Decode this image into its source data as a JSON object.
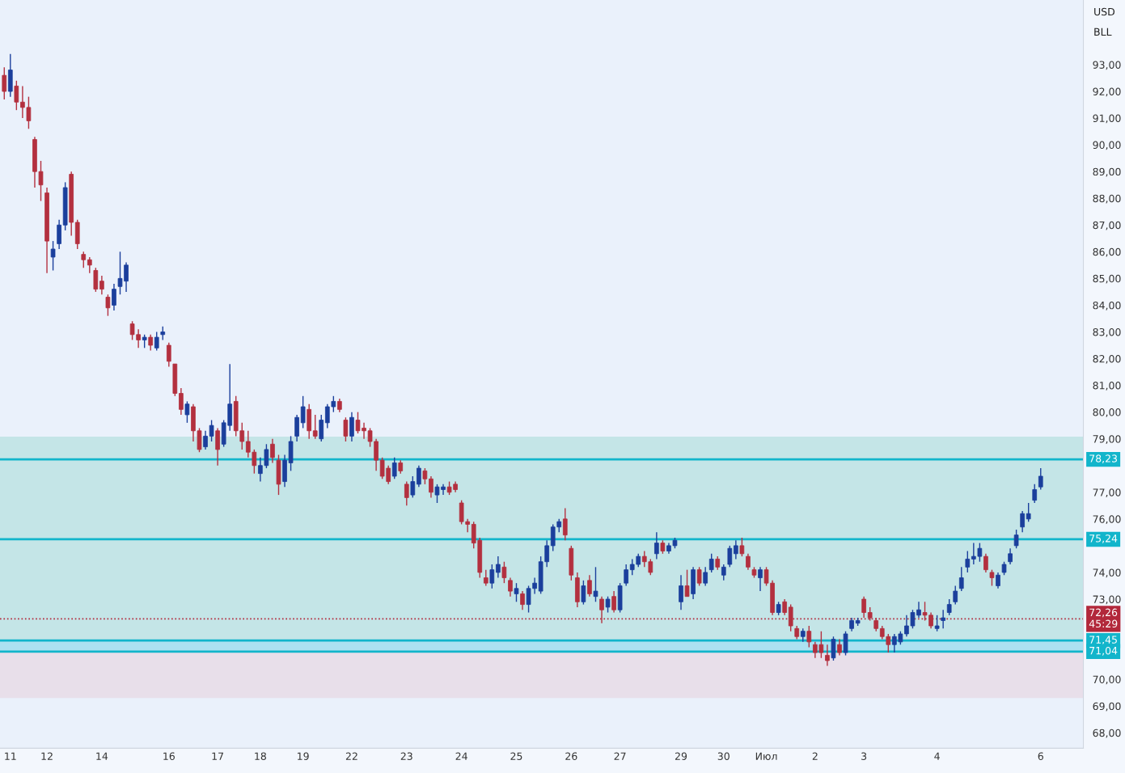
{
  "chart_data": {
    "type": "candlestick",
    "categories": [
      null,
      "11",
      null,
      null,
      null,
      null,
      null,
      "12",
      null,
      null,
      null,
      null,
      null,
      null,
      null,
      null,
      "14",
      null,
      null,
      null,
      null,
      null,
      null,
      null,
      null,
      null,
      null,
      "16",
      null,
      null,
      null,
      null,
      null,
      null,
      null,
      "17",
      null,
      null,
      null,
      null,
      null,
      null,
      "18",
      null,
      null,
      null,
      null,
      null,
      null,
      "19",
      null,
      null,
      null,
      null,
      null,
      null,
      null,
      "22",
      null,
      null,
      null,
      null,
      null,
      null,
      null,
      null,
      "23",
      null,
      null,
      null,
      null,
      null,
      null,
      null,
      null,
      "24",
      null,
      null,
      null,
      null,
      null,
      null,
      null,
      null,
      "25",
      null,
      null,
      null,
      null,
      null,
      null,
      null,
      null,
      "26",
      null,
      null,
      null,
      null,
      null,
      null,
      null,
      "27",
      null,
      null,
      null,
      null,
      null,
      null,
      null,
      null,
      null,
      "29",
      null,
      null,
      null,
      null,
      null,
      null,
      "30",
      null,
      null,
      null,
      null,
      null,
      null,
      "Июл",
      null,
      null,
      null,
      null,
      null,
      null,
      null,
      "2",
      null,
      null,
      null,
      null,
      null,
      null,
      null,
      "3",
      null,
      null,
      null,
      null,
      null,
      null,
      null,
      null,
      null,
      null,
      null,
      "4",
      null,
      null,
      null,
      null,
      null,
      null,
      null,
      null,
      null,
      null,
      null,
      null,
      null,
      null,
      null,
      null,
      "6"
    ],
    "ohlc": [
      [
        92.6,
        92.9,
        91.7,
        92.0
      ],
      [
        92.0,
        93.4,
        91.8,
        92.8
      ],
      [
        92.2,
        92.4,
        91.3,
        91.6
      ],
      [
        91.6,
        92.2,
        91.0,
        91.4
      ],
      [
        91.4,
        91.8,
        90.6,
        90.9
      ],
      [
        90.2,
        90.3,
        88.4,
        89.0
      ],
      [
        89.0,
        89.4,
        87.9,
        88.5
      ],
      [
        88.2,
        88.4,
        85.2,
        86.4
      ],
      [
        85.8,
        86.4,
        85.3,
        86.1
      ],
      [
        86.3,
        87.2,
        86.1,
        87.0
      ],
      [
        87.0,
        88.6,
        86.8,
        88.4
      ],
      [
        88.9,
        89.0,
        86.6,
        87.1
      ],
      [
        87.1,
        87.2,
        86.1,
        86.3
      ],
      [
        85.9,
        86.0,
        85.4,
        85.7
      ],
      [
        85.7,
        85.8,
        85.2,
        85.5
      ],
      [
        85.3,
        85.4,
        84.5,
        84.6
      ],
      [
        84.9,
        85.1,
        84.4,
        84.6
      ],
      [
        84.3,
        84.4,
        83.6,
        83.9
      ],
      [
        84.0,
        84.8,
        83.8,
        84.6
      ],
      [
        84.7,
        86.0,
        84.4,
        85.0
      ],
      [
        84.9,
        85.6,
        84.5,
        85.5
      ],
      [
        83.3,
        83.4,
        82.7,
        82.9
      ],
      [
        82.9,
        83.1,
        82.4,
        82.7
      ],
      [
        82.7,
        82.9,
        82.4,
        82.8
      ],
      [
        82.8,
        82.9,
        82.3,
        82.5
      ],
      [
        82.4,
        83.0,
        82.3,
        82.8
      ],
      [
        82.9,
        83.2,
        82.7,
        83.0
      ],
      [
        82.5,
        82.6,
        81.7,
        81.9
      ],
      [
        81.8,
        81.8,
        80.6,
        80.7
      ],
      [
        80.7,
        80.9,
        79.9,
        80.1
      ],
      [
        79.9,
        80.4,
        79.6,
        80.3
      ],
      [
        80.2,
        80.3,
        78.9,
        79.3
      ],
      [
        79.3,
        79.4,
        78.5,
        78.6
      ],
      [
        78.7,
        79.3,
        78.6,
        79.1
      ],
      [
        79.1,
        79.7,
        78.9,
        79.5
      ],
      [
        79.3,
        79.4,
        78.0,
        78.6
      ],
      [
        78.8,
        79.7,
        78.7,
        79.6
      ],
      [
        79.5,
        81.8,
        79.3,
        80.3
      ],
      [
        80.4,
        80.6,
        79.1,
        79.3
      ],
      [
        79.3,
        79.6,
        78.6,
        78.9
      ],
      [
        78.9,
        79.3,
        78.3,
        78.5
      ],
      [
        78.5,
        78.6,
        77.7,
        78.0
      ],
      [
        77.7,
        78.3,
        77.4,
        78.0
      ],
      [
        78.0,
        78.8,
        77.9,
        78.6
      ],
      [
        78.8,
        79.0,
        78.1,
        78.3
      ],
      [
        78.2,
        78.4,
        76.9,
        77.3
      ],
      [
        77.4,
        78.4,
        77.2,
        78.2
      ],
      [
        78.1,
        79.1,
        77.8,
        78.9
      ],
      [
        79.1,
        79.9,
        78.9,
        79.8
      ],
      [
        79.6,
        80.6,
        79.4,
        80.2
      ],
      [
        80.1,
        80.3,
        79.0,
        79.3
      ],
      [
        79.3,
        79.9,
        79.0,
        79.1
      ],
      [
        79.0,
        79.9,
        78.9,
        79.7
      ],
      [
        79.6,
        80.3,
        79.4,
        80.2
      ],
      [
        80.2,
        80.6,
        80.0,
        80.4
      ],
      [
        80.4,
        80.5,
        80.0,
        80.1
      ],
      [
        79.7,
        79.8,
        78.9,
        79.1
      ],
      [
        79.1,
        80.0,
        78.9,
        79.8
      ],
      [
        79.7,
        80.0,
        79.2,
        79.3
      ],
      [
        79.4,
        79.6,
        79.0,
        79.3
      ],
      [
        79.3,
        79.4,
        78.7,
        78.9
      ],
      [
        78.9,
        79.0,
        77.8,
        78.2
      ],
      [
        78.2,
        78.3,
        77.5,
        77.6
      ],
      [
        77.9,
        78.0,
        77.3,
        77.4
      ],
      [
        77.6,
        78.3,
        77.5,
        78.1
      ],
      [
        78.1,
        78.2,
        77.7,
        77.8
      ],
      [
        77.3,
        77.4,
        76.5,
        76.8
      ],
      [
        76.9,
        77.6,
        76.8,
        77.4
      ],
      [
        77.3,
        78.0,
        77.2,
        77.9
      ],
      [
        77.8,
        77.9,
        77.3,
        77.5
      ],
      [
        77.5,
        77.6,
        76.8,
        77.0
      ],
      [
        76.9,
        77.3,
        76.6,
        77.2
      ],
      [
        77.1,
        77.3,
        76.9,
        77.2
      ],
      [
        77.2,
        77.4,
        76.9,
        77.0
      ],
      [
        77.3,
        77.4,
        77.0,
        77.1
      ],
      [
        76.6,
        76.7,
        75.8,
        75.9
      ],
      [
        75.9,
        76.0,
        75.5,
        75.8
      ],
      [
        75.8,
        75.9,
        74.9,
        75.1
      ],
      [
        75.2,
        75.3,
        73.8,
        74.0
      ],
      [
        73.8,
        74.1,
        73.5,
        73.6
      ],
      [
        73.6,
        74.3,
        73.4,
        74.1
      ],
      [
        74.0,
        74.6,
        73.8,
        74.3
      ],
      [
        74.2,
        74.4,
        73.6,
        73.8
      ],
      [
        73.7,
        73.8,
        73.1,
        73.3
      ],
      [
        73.2,
        73.6,
        72.9,
        73.4
      ],
      [
        73.2,
        73.3,
        72.6,
        72.8
      ],
      [
        72.8,
        73.5,
        72.5,
        73.4
      ],
      [
        73.4,
        73.8,
        73.2,
        73.6
      ],
      [
        73.3,
        74.6,
        73.2,
        74.4
      ],
      [
        74.4,
        75.2,
        74.2,
        75.0
      ],
      [
        75.0,
        75.8,
        74.8,
        75.7
      ],
      [
        75.7,
        76.0,
        75.5,
        75.9
      ],
      [
        76.0,
        76.4,
        75.2,
        75.4
      ],
      [
        74.9,
        75.0,
        73.7,
        73.9
      ],
      [
        73.8,
        74.0,
        72.7,
        72.9
      ],
      [
        72.9,
        73.7,
        72.8,
        73.5
      ],
      [
        73.7,
        73.9,
        73.1,
        73.2
      ],
      [
        73.1,
        74.2,
        72.9,
        73.3
      ],
      [
        73.0,
        73.1,
        72.1,
        72.6
      ],
      [
        72.7,
        73.1,
        72.5,
        73.0
      ],
      [
        73.1,
        73.3,
        72.5,
        72.6
      ],
      [
        72.6,
        73.6,
        72.5,
        73.5
      ],
      [
        73.6,
        74.3,
        73.5,
        74.1
      ],
      [
        74.1,
        74.5,
        73.9,
        74.3
      ],
      [
        74.3,
        74.7,
        74.2,
        74.6
      ],
      [
        74.6,
        74.8,
        74.2,
        74.4
      ],
      [
        74.4,
        74.5,
        73.9,
        74.0
      ],
      [
        74.7,
        75.5,
        74.5,
        75.1
      ],
      [
        75.1,
        75.2,
        74.7,
        74.8
      ],
      [
        74.8,
        75.1,
        74.7,
        75.0
      ],
      [
        75.0,
        75.3,
        74.9,
        75.2
      ],
      [
        72.9,
        73.9,
        72.6,
        73.5
      ],
      [
        73.5,
        74.1,
        73.1,
        73.1
      ],
      [
        73.2,
        74.2,
        73.0,
        74.1
      ],
      [
        74.1,
        74.2,
        73.5,
        73.6
      ],
      [
        73.6,
        74.2,
        73.5,
        74.0
      ],
      [
        74.1,
        74.7,
        74.0,
        74.5
      ],
      [
        74.5,
        74.6,
        74.1,
        74.2
      ],
      [
        73.9,
        74.3,
        73.7,
        74.2
      ],
      [
        74.3,
        75.0,
        74.2,
        74.9
      ],
      [
        74.7,
        75.2,
        74.5,
        75.0
      ],
      [
        75.0,
        75.3,
        74.6,
        74.7
      ],
      [
        74.6,
        74.7,
        74.1,
        74.2
      ],
      [
        74.1,
        74.2,
        73.8,
        73.9
      ],
      [
        73.8,
        74.2,
        73.3,
        74.1
      ],
      [
        74.1,
        74.2,
        73.5,
        73.6
      ],
      [
        73.6,
        73.7,
        72.4,
        72.5
      ],
      [
        72.5,
        72.9,
        72.4,
        72.8
      ],
      [
        72.9,
        73.0,
        72.4,
        72.5
      ],
      [
        72.7,
        72.8,
        71.8,
        72.0
      ],
      [
        71.9,
        72.0,
        71.5,
        71.6
      ],
      [
        71.6,
        71.9,
        71.4,
        71.8
      ],
      [
        71.8,
        72.0,
        71.2,
        71.4
      ],
      [
        71.3,
        71.4,
        70.8,
        71.0
      ],
      [
        71.3,
        71.8,
        70.8,
        71.0
      ],
      [
        70.9,
        71.3,
        70.5,
        70.7
      ],
      [
        70.8,
        71.6,
        70.7,
        71.5
      ],
      [
        71.3,
        71.5,
        70.9,
        71.0
      ],
      [
        71.0,
        71.8,
        70.9,
        71.7
      ],
      [
        71.9,
        72.3,
        71.8,
        72.2
      ],
      [
        72.1,
        72.3,
        72.0,
        72.2
      ],
      [
        73.0,
        73.1,
        72.3,
        72.5
      ],
      [
        72.5,
        72.7,
        72.2,
        72.3
      ],
      [
        72.2,
        72.3,
        71.8,
        71.9
      ],
      [
        71.9,
        72.0,
        71.5,
        71.6
      ],
      [
        71.6,
        71.7,
        71.0,
        71.3
      ],
      [
        71.3,
        71.7,
        71.0,
        71.6
      ],
      [
        71.4,
        71.8,
        71.3,
        71.7
      ],
      [
        71.7,
        72.4,
        71.6,
        72.0
      ],
      [
        72.0,
        72.6,
        71.9,
        72.5
      ],
      [
        72.4,
        72.9,
        72.3,
        72.6
      ],
      [
        72.5,
        72.9,
        72.2,
        72.4
      ],
      [
        72.4,
        72.5,
        71.9,
        72.0
      ],
      [
        71.9,
        72.4,
        71.8,
        72.0
      ],
      [
        72.2,
        72.6,
        71.9,
        72.3
      ],
      [
        72.5,
        73.0,
        72.4,
        72.8
      ],
      [
        72.9,
        73.5,
        72.8,
        73.3
      ],
      [
        73.4,
        74.2,
        73.3,
        73.8
      ],
      [
        74.2,
        74.8,
        74.0,
        74.5
      ],
      [
        74.5,
        75.1,
        74.3,
        74.6
      ],
      [
        74.6,
        75.1,
        74.4,
        74.9
      ],
      [
        74.6,
        74.7,
        74.0,
        74.1
      ],
      [
        74.0,
        74.1,
        73.5,
        73.8
      ],
      [
        73.5,
        74.0,
        73.4,
        73.9
      ],
      [
        74.0,
        74.4,
        73.9,
        74.3
      ],
      [
        74.4,
        74.9,
        74.3,
        74.7
      ],
      [
        75.0,
        75.6,
        74.9,
        75.4
      ],
      [
        75.7,
        76.3,
        75.5,
        76.2
      ],
      [
        76.0,
        76.6,
        75.9,
        76.2
      ],
      [
        76.7,
        77.3,
        76.6,
        77.1
      ],
      [
        77.2,
        77.9,
        77.1,
        77.6
      ]
    ],
    "colors": [
      "#b3303f",
      "#1b3f9c",
      "#b3303f",
      "#b3303f",
      "#b3303f",
      "#b3303f",
      "#b3303f",
      "#b3303f",
      "#1b3f9c",
      "#1b3f9c",
      "#1b3f9c",
      "#b3303f",
      "#b3303f",
      "#b3303f",
      "#b3303f",
      "#b3303f",
      "#b3303f",
      "#b3303f",
      "#1b3f9c",
      "#1b3f9c",
      "#1b3f9c",
      "#b3303f",
      "#b3303f",
      "#1b3f9c",
      "#b3303f",
      "#1b3f9c",
      "#1b3f9c",
      "#b3303f",
      "#b3303f",
      "#b3303f",
      "#1b3f9c",
      "#b3303f",
      "#b3303f",
      "#1b3f9c",
      "#1b3f9c",
      "#b3303f",
      "#1b3f9c",
      "#1b3f9c",
      "#b3303f",
      "#b3303f",
      "#b3303f",
      "#b3303f",
      "#1b3f9c",
      "#1b3f9c",
      "#b3303f",
      "#b3303f",
      "#1b3f9c",
      "#1b3f9c",
      "#1b3f9c",
      "#1b3f9c",
      "#b3303f",
      "#b3303f",
      "#1b3f9c",
      "#1b3f9c",
      "#1b3f9c",
      "#b3303f",
      "#b3303f",
      "#1b3f9c",
      "#b3303f",
      "#b3303f",
      "#b3303f",
      "#b3303f",
      "#b3303f",
      "#b3303f",
      "#1b3f9c",
      "#b3303f",
      "#b3303f",
      "#1b3f9c",
      "#1b3f9c",
      "#b3303f",
      "#b3303f",
      "#1b3f9c",
      "#1b3f9c",
      "#b3303f",
      "#b3303f",
      "#b3303f",
      "#b3303f",
      "#b3303f",
      "#b3303f",
      "#b3303f",
      "#1b3f9c",
      "#1b3f9c",
      "#b3303f",
      "#b3303f",
      "#1b3f9c",
      "#b3303f",
      "#1b3f9c",
      "#1b3f9c",
      "#1b3f9c",
      "#1b3f9c",
      "#1b3f9c",
      "#1b3f9c",
      "#b3303f",
      "#b3303f",
      "#b3303f",
      "#1b3f9c",
      "#b3303f",
      "#1b3f9c",
      "#b3303f",
      "#1b3f9c",
      "#b3303f",
      "#1b3f9c",
      "#1b3f9c",
      "#1b3f9c",
      "#1b3f9c",
      "#b3303f",
      "#b3303f",
      "#1b3f9c",
      "#b3303f",
      "#1b3f9c",
      "#1b3f9c",
      "#1b3f9c",
      "#b3303f",
      "#1b3f9c",
      "#b3303f",
      "#1b3f9c",
      "#1b3f9c",
      "#b3303f",
      "#1b3f9c",
      "#1b3f9c",
      "#1b3f9c",
      "#b3303f",
      "#b3303f",
      "#b3303f",
      "#1b3f9c",
      "#b3303f",
      "#b3303f",
      "#1b3f9c",
      "#b3303f",
      "#b3303f",
      "#b3303f",
      "#1b3f9c",
      "#b3303f",
      "#b3303f",
      "#b3303f",
      "#b3303f",
      "#1b3f9c",
      "#b3303f",
      "#1b3f9c",
      "#1b3f9c",
      "#1b3f9c",
      "#b3303f",
      "#b3303f",
      "#b3303f",
      "#b3303f",
      "#b3303f",
      "#1b3f9c",
      "#1b3f9c",
      "#1b3f9c",
      "#1b3f9c",
      "#1b3f9c",
      "#b3303f",
      "#b3303f",
      "#1b3f9c",
      "#1b3f9c",
      "#1b3f9c",
      "#1b3f9c",
      "#1b3f9c",
      "#1b3f9c",
      "#1b3f9c",
      "#1b3f9c",
      "#b3303f",
      "#b3303f",
      "#1b3f9c",
      "#1b3f9c",
      "#1b3f9c",
      "#1b3f9c",
      "#1b3f9c",
      "#1b3f9c",
      "#1b3f9c",
      "#1b3f9c"
    ],
    "ylim": [
      67.42,
      95.42
    ],
    "yticks": [
      {
        "value": 68,
        "label": "68,00"
      },
      {
        "value": 69,
        "label": "69,00"
      },
      {
        "value": 70,
        "label": "70,00"
      },
      {
        "value": 73,
        "label": "73,00"
      },
      {
        "value": 74,
        "label": "74,00"
      },
      {
        "value": 76,
        "label": "76,00"
      },
      {
        "value": 77,
        "label": "77,00"
      },
      {
        "value": 79,
        "label": "79,00"
      },
      {
        "value": 80,
        "label": "80,00"
      },
      {
        "value": 81,
        "label": "81,00"
      },
      {
        "value": 82,
        "label": "82,00"
      },
      {
        "value": 83,
        "label": "83,00"
      },
      {
        "value": 84,
        "label": "84,00"
      },
      {
        "value": 85,
        "label": "85,00"
      },
      {
        "value": 86,
        "label": "86,00"
      },
      {
        "value": 87,
        "label": "87,00"
      },
      {
        "value": 88,
        "label": "88,00"
      },
      {
        "value": 89,
        "label": "89,00"
      },
      {
        "value": 90,
        "label": "90,00"
      },
      {
        "value": 91,
        "label": "91,00"
      },
      {
        "value": 92,
        "label": "92,00"
      },
      {
        "value": 93,
        "label": "93,00"
      }
    ],
    "ref_lines": [
      {
        "axis": "y",
        "value": 78.23,
        "label": "78,23",
        "color": "#12b5cb",
        "line_style": "solid"
      },
      {
        "axis": "y",
        "value": 75.24,
        "label": "75,24",
        "color": "#12b5cb",
        "line_style": "solid"
      },
      {
        "axis": "y",
        "value": 72.26,
        "label": "72,26\n45:29",
        "color": "#b2283b",
        "line_style": "dotted"
      },
      {
        "axis": "y",
        "value": 71.45,
        "label": "71,45",
        "color": "#12b5cb",
        "line_style": "solid"
      },
      {
        "axis": "y",
        "value": 71.04,
        "label": "71,04",
        "color": "#12b5cb",
        "line_style": "solid"
      }
    ],
    "bands": [
      {
        "axis": "y",
        "from": 71.45,
        "to": 79.08,
        "color": "#7fcdc4"
      },
      {
        "axis": "y",
        "from": 69.3,
        "to": 71.04,
        "color": "#e6bccb"
      },
      {
        "axis": "y",
        "from": 71.04,
        "to": 71.45,
        "color": "#3cc3e0"
      }
    ],
    "annotations": [
      "USD",
      "BLL"
    ],
    "grid": false,
    "legend": false
  }
}
